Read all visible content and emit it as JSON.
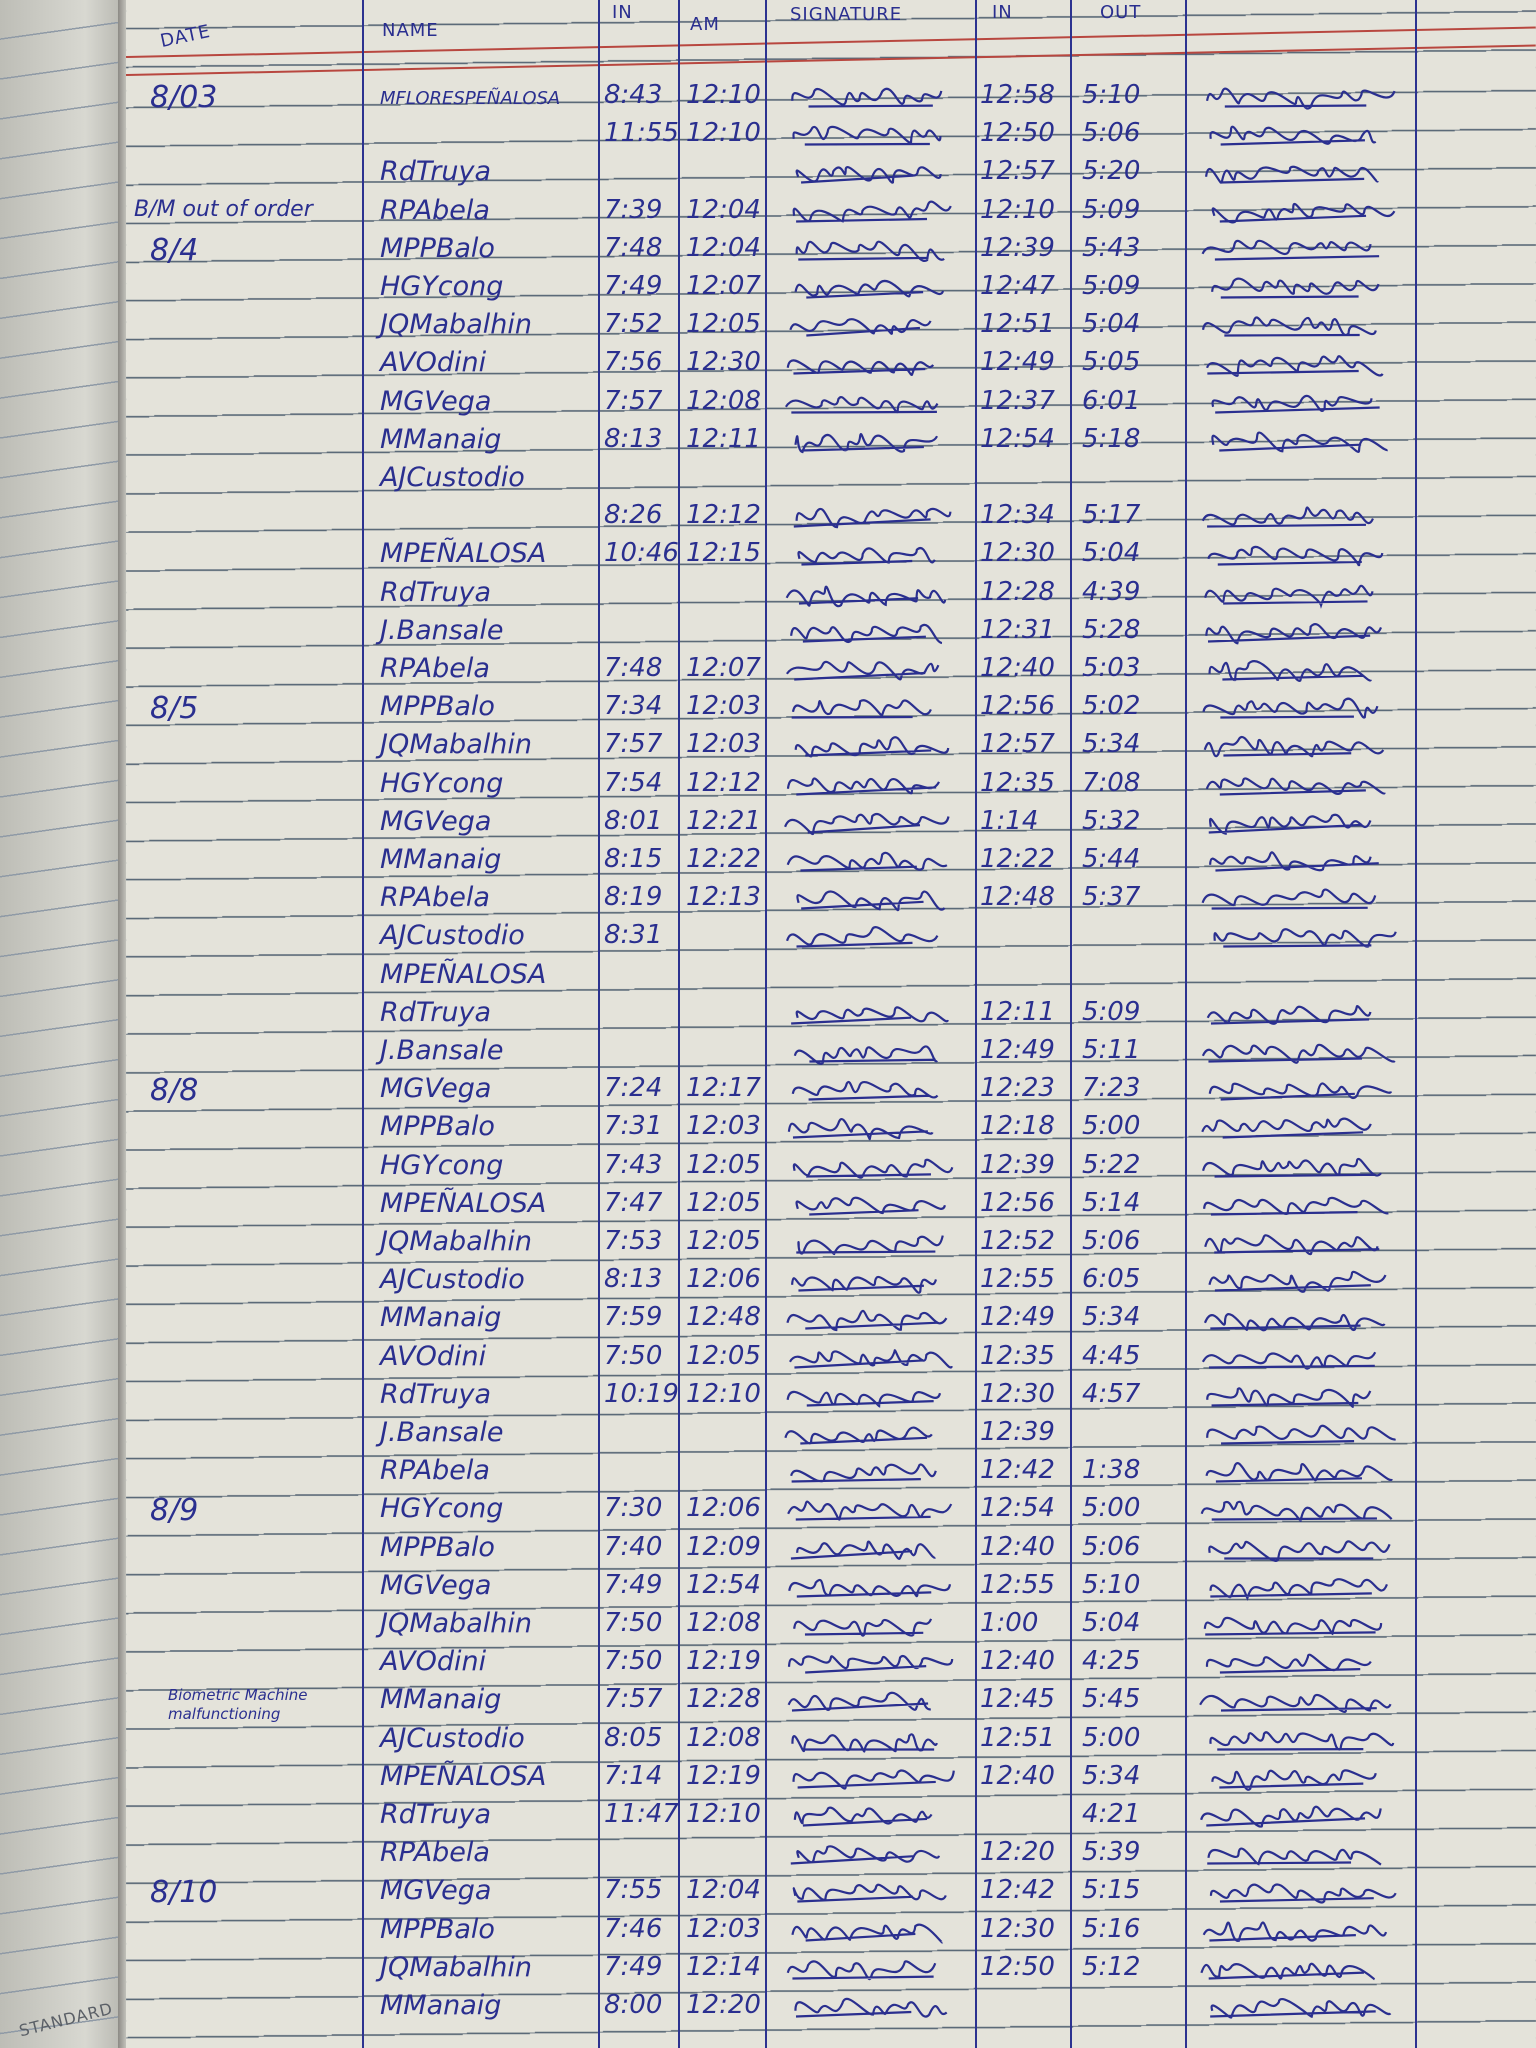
{
  "header": {
    "date": "DATE",
    "name": "NAME",
    "am_in": "IN",
    "am": "AM",
    "signature_am": "SIGNATURE",
    "pm_in": "IN",
    "pm_out": "OUT"
  },
  "left_page_label": "STANDARD",
  "ink_color": "#2a2f8f",
  "rows": [
    {
      "date": "8/03",
      "note": "",
      "name": "MFLORESPEÑALOSA",
      "am_in": "8:43",
      "am_out": "12:10",
      "pm_in": "12:58",
      "pm_out": "5:10",
      "sig": true
    },
    {
      "date": "",
      "note": "",
      "name": "",
      "am_in": "11:55",
      "am_out": "12:10",
      "pm_in": "12:50",
      "pm_out": "5:06",
      "sig": true
    },
    {
      "date": "",
      "note": "",
      "name": "RdTruya",
      "am_in": "",
      "am_out": "",
      "pm_in": "12:57",
      "pm_out": "5:20",
      "sig": true
    },
    {
      "date": "",
      "note": "B/M out of order",
      "name": "RPAbela",
      "am_in": "7:39",
      "am_out": "12:04",
      "pm_in": "12:10",
      "pm_out": "5:09",
      "sig": true
    },
    {
      "date": "8/4",
      "note": "",
      "name": "MPPBalo",
      "am_in": "7:48",
      "am_out": "12:04",
      "pm_in": "12:39",
      "pm_out": "5:43",
      "sig": true
    },
    {
      "date": "",
      "note": "",
      "name": "HGYcong",
      "am_in": "7:49",
      "am_out": "12:07",
      "pm_in": "12:47",
      "pm_out": "5:09",
      "sig": true
    },
    {
      "date": "",
      "note": "",
      "name": "JQMabalhin",
      "am_in": "7:52",
      "am_out": "12:05",
      "pm_in": "12:51",
      "pm_out": "5:04",
      "sig": true
    },
    {
      "date": "",
      "note": "",
      "name": "AVOdini",
      "am_in": "7:56",
      "am_out": "12:30",
      "pm_in": "12:49",
      "pm_out": "5:05",
      "sig": true
    },
    {
      "date": "",
      "note": "",
      "name": "MGVega",
      "am_in": "7:57",
      "am_out": "12:08",
      "pm_in": "12:37",
      "pm_out": "6:01",
      "sig": true
    },
    {
      "date": "",
      "note": "",
      "name": "MManaig",
      "am_in": "8:13",
      "am_out": "12:11",
      "pm_in": "12:54",
      "pm_out": "5:18",
      "sig": true
    },
    {
      "date": "",
      "note": "",
      "name": "AJCustodio",
      "am_in": "",
      "am_out": "",
      "pm_in": "",
      "pm_out": "",
      "sig": false
    },
    {
      "date": "",
      "note": "",
      "name": "",
      "am_in": "8:26",
      "am_out": "12:12",
      "pm_in": "12:34",
      "pm_out": "5:17",
      "sig": true
    },
    {
      "date": "",
      "note": "",
      "name": "MPEÑALOSA",
      "am_in": "10:46",
      "am_out": "12:15",
      "pm_in": "12:30",
      "pm_out": "5:04",
      "sig": true
    },
    {
      "date": "",
      "note": "",
      "name": "RdTruya",
      "am_in": "",
      "am_out": "",
      "pm_in": "12:28",
      "pm_out": "4:39",
      "sig": true
    },
    {
      "date": "",
      "note": "",
      "name": "J.Bansale",
      "am_in": "",
      "am_out": "",
      "pm_in": "12:31",
      "pm_out": "5:28",
      "sig": true
    },
    {
      "date": "",
      "note": "",
      "name": "RPAbela",
      "am_in": "7:48",
      "am_out": "12:07",
      "pm_in": "12:40",
      "pm_out": "5:03",
      "sig": true
    },
    {
      "date": "8/5",
      "note": "",
      "name": "MPPBalo",
      "am_in": "7:34",
      "am_out": "12:03",
      "pm_in": "12:56",
      "pm_out": "5:02",
      "sig": true
    },
    {
      "date": "",
      "note": "",
      "name": "JQMabalhin",
      "am_in": "7:57",
      "am_out": "12:03",
      "pm_in": "12:57",
      "pm_out": "5:34",
      "sig": true
    },
    {
      "date": "",
      "note": "",
      "name": "HGYcong",
      "am_in": "7:54",
      "am_out": "12:12",
      "pm_in": "12:35",
      "pm_out": "7:08",
      "sig": true
    },
    {
      "date": "",
      "note": "",
      "name": "MGVega",
      "am_in": "8:01",
      "am_out": "12:21",
      "pm_in": "1:14",
      "pm_out": "5:32",
      "sig": true
    },
    {
      "date": "",
      "note": "",
      "name": "MManaig",
      "am_in": "8:15",
      "am_out": "12:22",
      "pm_in": "12:22",
      "pm_out": "5:44",
      "sig": true
    },
    {
      "date": "",
      "note": "",
      "name": "RPAbela",
      "am_in": "8:19",
      "am_out": "12:13",
      "pm_in": "12:48",
      "pm_out": "5:37",
      "sig": true
    },
    {
      "date": "",
      "note": "",
      "name": "AJCustodio",
      "am_in": "8:31",
      "am_out": "",
      "pm_in": "",
      "pm_out": "",
      "sig": true
    },
    {
      "date": "",
      "note": "",
      "name": "MPEÑALOSA",
      "am_in": "",
      "am_out": "",
      "pm_in": "",
      "pm_out": "",
      "sig": false
    },
    {
      "date": "",
      "note": "",
      "name": "RdTruya",
      "am_in": "",
      "am_out": "",
      "pm_in": "12:11",
      "pm_out": "5:09",
      "sig": true
    },
    {
      "date": "",
      "note": "",
      "name": "J.Bansale",
      "am_in": "",
      "am_out": "",
      "pm_in": "12:49",
      "pm_out": "5:11",
      "sig": true
    },
    {
      "date": "8/8",
      "note": "",
      "name": "MGVega",
      "am_in": "7:24",
      "am_out": "12:17",
      "pm_in": "12:23",
      "pm_out": "7:23",
      "sig": true
    },
    {
      "date": "",
      "note": "",
      "name": "MPPBalo",
      "am_in": "7:31",
      "am_out": "12:03",
      "pm_in": "12:18",
      "pm_out": "5:00",
      "sig": true
    },
    {
      "date": "",
      "note": "",
      "name": "HGYcong",
      "am_in": "7:43",
      "am_out": "12:05",
      "pm_in": "12:39",
      "pm_out": "5:22",
      "sig": true
    },
    {
      "date": "",
      "note": "",
      "name": "MPEÑALOSA",
      "am_in": "7:47",
      "am_out": "12:05",
      "pm_in": "12:56",
      "pm_out": "5:14",
      "sig": true
    },
    {
      "date": "",
      "note": "",
      "name": "JQMabalhin",
      "am_in": "7:53",
      "am_out": "12:05",
      "pm_in": "12:52",
      "pm_out": "5:06",
      "sig": true
    },
    {
      "date": "",
      "note": "",
      "name": "AJCustodio",
      "am_in": "8:13",
      "am_out": "12:06",
      "pm_in": "12:55",
      "pm_out": "6:05",
      "sig": true
    },
    {
      "date": "",
      "note": "",
      "name": "MManaig",
      "am_in": "7:59",
      "am_out": "12:48",
      "pm_in": "12:49",
      "pm_out": "5:34",
      "sig": true
    },
    {
      "date": "",
      "note": "",
      "name": "AVOdini",
      "am_in": "7:50",
      "am_out": "12:05",
      "pm_in": "12:35",
      "pm_out": "4:45",
      "sig": true
    },
    {
      "date": "",
      "note": "",
      "name": "RdTruya",
      "am_in": "10:19",
      "am_out": "12:10",
      "pm_in": "12:30",
      "pm_out": "4:57",
      "sig": true
    },
    {
      "date": "",
      "note": "",
      "name": "J.Bansale",
      "am_in": "",
      "am_out": "",
      "pm_in": "12:39",
      "pm_out": "",
      "sig": true
    },
    {
      "date": "",
      "note": "",
      "name": "RPAbela",
      "am_in": "",
      "am_out": "",
      "pm_in": "12:42",
      "pm_out": "1:38",
      "sig": true
    },
    {
      "date": "8/9",
      "note": "",
      "name": "HGYcong",
      "am_in": "7:30",
      "am_out": "12:06",
      "pm_in": "12:54",
      "pm_out": "5:00",
      "sig": true
    },
    {
      "date": "",
      "note": "",
      "name": "MPPBalo",
      "am_in": "7:40",
      "am_out": "12:09",
      "pm_in": "12:40",
      "pm_out": "5:06",
      "sig": true
    },
    {
      "date": "",
      "note": "",
      "name": "MGVega",
      "am_in": "7:49",
      "am_out": "12:54",
      "pm_in": "12:55",
      "pm_out": "5:10",
      "sig": true
    },
    {
      "date": "",
      "note": "",
      "name": "JQMabalhin",
      "am_in": "7:50",
      "am_out": "12:08",
      "pm_in": "1:00",
      "pm_out": "5:04",
      "sig": true
    },
    {
      "date": "",
      "note": "",
      "name": "AVOdini",
      "am_in": "7:50",
      "am_out": "12:19",
      "pm_in": "12:40",
      "pm_out": "4:25",
      "sig": true
    },
    {
      "date": "",
      "note": "Biometric Machine malfunctioning",
      "name": "MManaig",
      "am_in": "7:57",
      "am_out": "12:28",
      "pm_in": "12:45",
      "pm_out": "5:45",
      "sig": true
    },
    {
      "date": "",
      "note": "",
      "name": "AJCustodio",
      "am_in": "8:05",
      "am_out": "12:08",
      "pm_in": "12:51",
      "pm_out": "5:00",
      "sig": true
    },
    {
      "date": "",
      "note": "",
      "name": "MPEÑALOSA",
      "am_in": "7:14",
      "am_out": "12:19",
      "pm_in": "12:40",
      "pm_out": "5:34",
      "sig": true
    },
    {
      "date": "",
      "note": "",
      "name": "RdTruya",
      "am_in": "11:47",
      "am_out": "12:10",
      "pm_in": "",
      "pm_out": "4:21",
      "sig": true
    },
    {
      "date": "",
      "note": "",
      "name": "RPAbela",
      "am_in": "",
      "am_out": "",
      "pm_in": "12:20",
      "pm_out": "5:39",
      "sig": true
    },
    {
      "date": "8/10",
      "note": "",
      "name": "MGVega",
      "am_in": "7:55",
      "am_out": "12:04",
      "pm_in": "12:42",
      "pm_out": "5:15",
      "sig": true
    },
    {
      "date": "",
      "note": "",
      "name": "MPPBalo",
      "am_in": "7:46",
      "am_out": "12:03",
      "pm_in": "12:30",
      "pm_out": "5:16",
      "sig": true
    },
    {
      "date": "",
      "note": "",
      "name": "JQMabalhin",
      "am_in": "7:49",
      "am_out": "12:14",
      "pm_in": "12:50",
      "pm_out": "5:12",
      "sig": true
    },
    {
      "date": "",
      "note": "",
      "name": "MManaig",
      "am_in": "8:00",
      "am_out": "12:20",
      "pm_in": "",
      "pm_out": "",
      "sig": true
    }
  ]
}
